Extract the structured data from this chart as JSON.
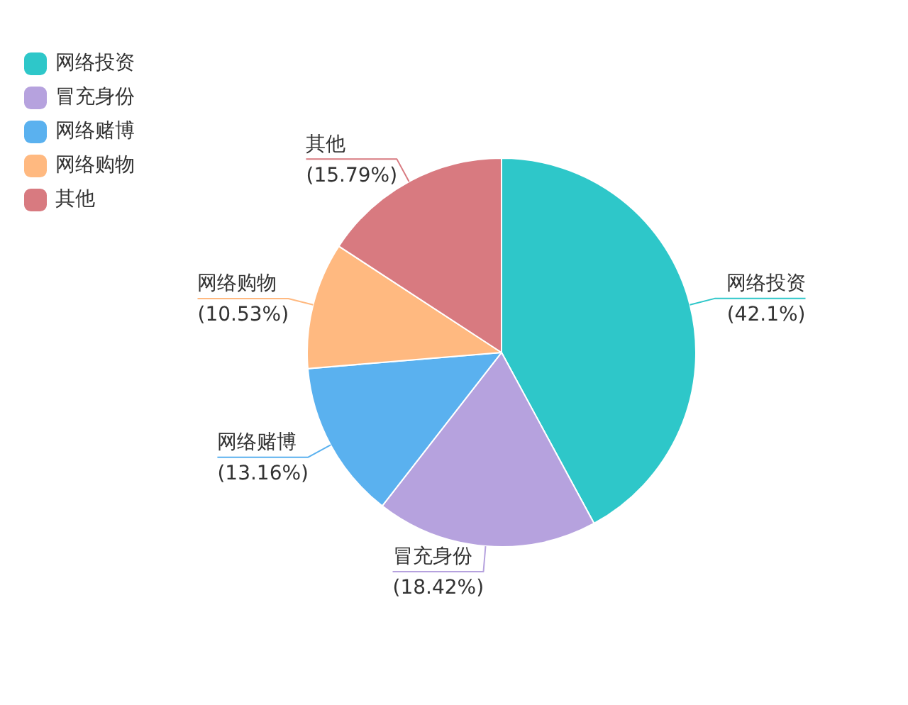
{
  "chart_data": {
    "type": "pie",
    "categories": [
      "网络投资",
      "冒充身份",
      "网络赌博",
      "网络购物",
      "其他"
    ],
    "values": [
      42.1,
      18.42,
      13.16,
      10.53,
      15.79
    ],
    "value_labels": [
      "(42.1%)",
      "(18.42%)",
      "(13.16%)",
      "(10.53%)",
      "(15.79%)"
    ],
    "colors": [
      "#2ec7c9",
      "#b6a2de",
      "#5ab1ef",
      "#ffb980",
      "#d87a80"
    ],
    "legend": "top left"
  }
}
